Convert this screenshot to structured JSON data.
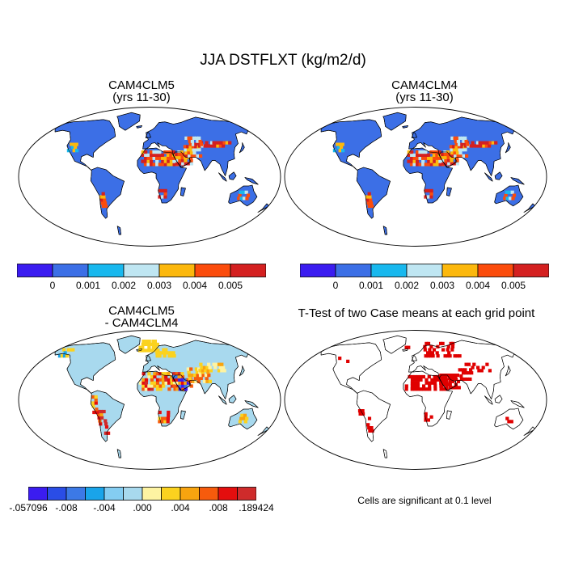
{
  "title": "JJA DSTFLXT (kg/m2/d)",
  "panels": [
    {
      "title_line1": "CAM4CLM5",
      "title_line2": "(yrs 11-30)"
    },
    {
      "title_line1": "CAM4CLM4",
      "title_line2": "(yrs 11-30)"
    },
    {
      "title_line1": "CAM4CLM5",
      "title_line2": "- CAM4CLM4"
    },
    {
      "title_line1": "T-Test of two Case means at each grid point",
      "title_line2": ""
    }
  ],
  "note": "Cells are significant at 0.1 level",
  "colorbar_abs": {
    "colors": [
      "#3b1cf0",
      "#3c6fe6",
      "#18b8ee",
      "#bfe6f2",
      "#fcb80d",
      "#fb4c0c",
      "#d42020"
    ],
    "labels": [
      "0",
      "0.001",
      "0.002",
      "0.003",
      "0.004",
      "0.005"
    ]
  },
  "colorbar_diff": {
    "colors": [
      "#3b1cf0",
      "#2a4de6",
      "#3c79e6",
      "#19a4ea",
      "#84cdf2",
      "#a8d9ee",
      "#fdf3a2",
      "#fbd21f",
      "#f8a40f",
      "#f65b0c",
      "#e40e0e",
      "#cf2b2b"
    ],
    "labels": [
      "-.057096",
      "-.008",
      "-.004",
      ".000",
      ".004",
      ".008",
      ".189424"
    ],
    "label_positions": [
      0,
      2,
      4,
      6,
      8,
      10,
      12
    ]
  },
  "map_fills": {
    "clm5": "#3c6fe6",
    "clm4": "#3c6fe6",
    "diff": "#a8d9ee",
    "ttest": "none"
  },
  "significance_color": "#e00000"
}
